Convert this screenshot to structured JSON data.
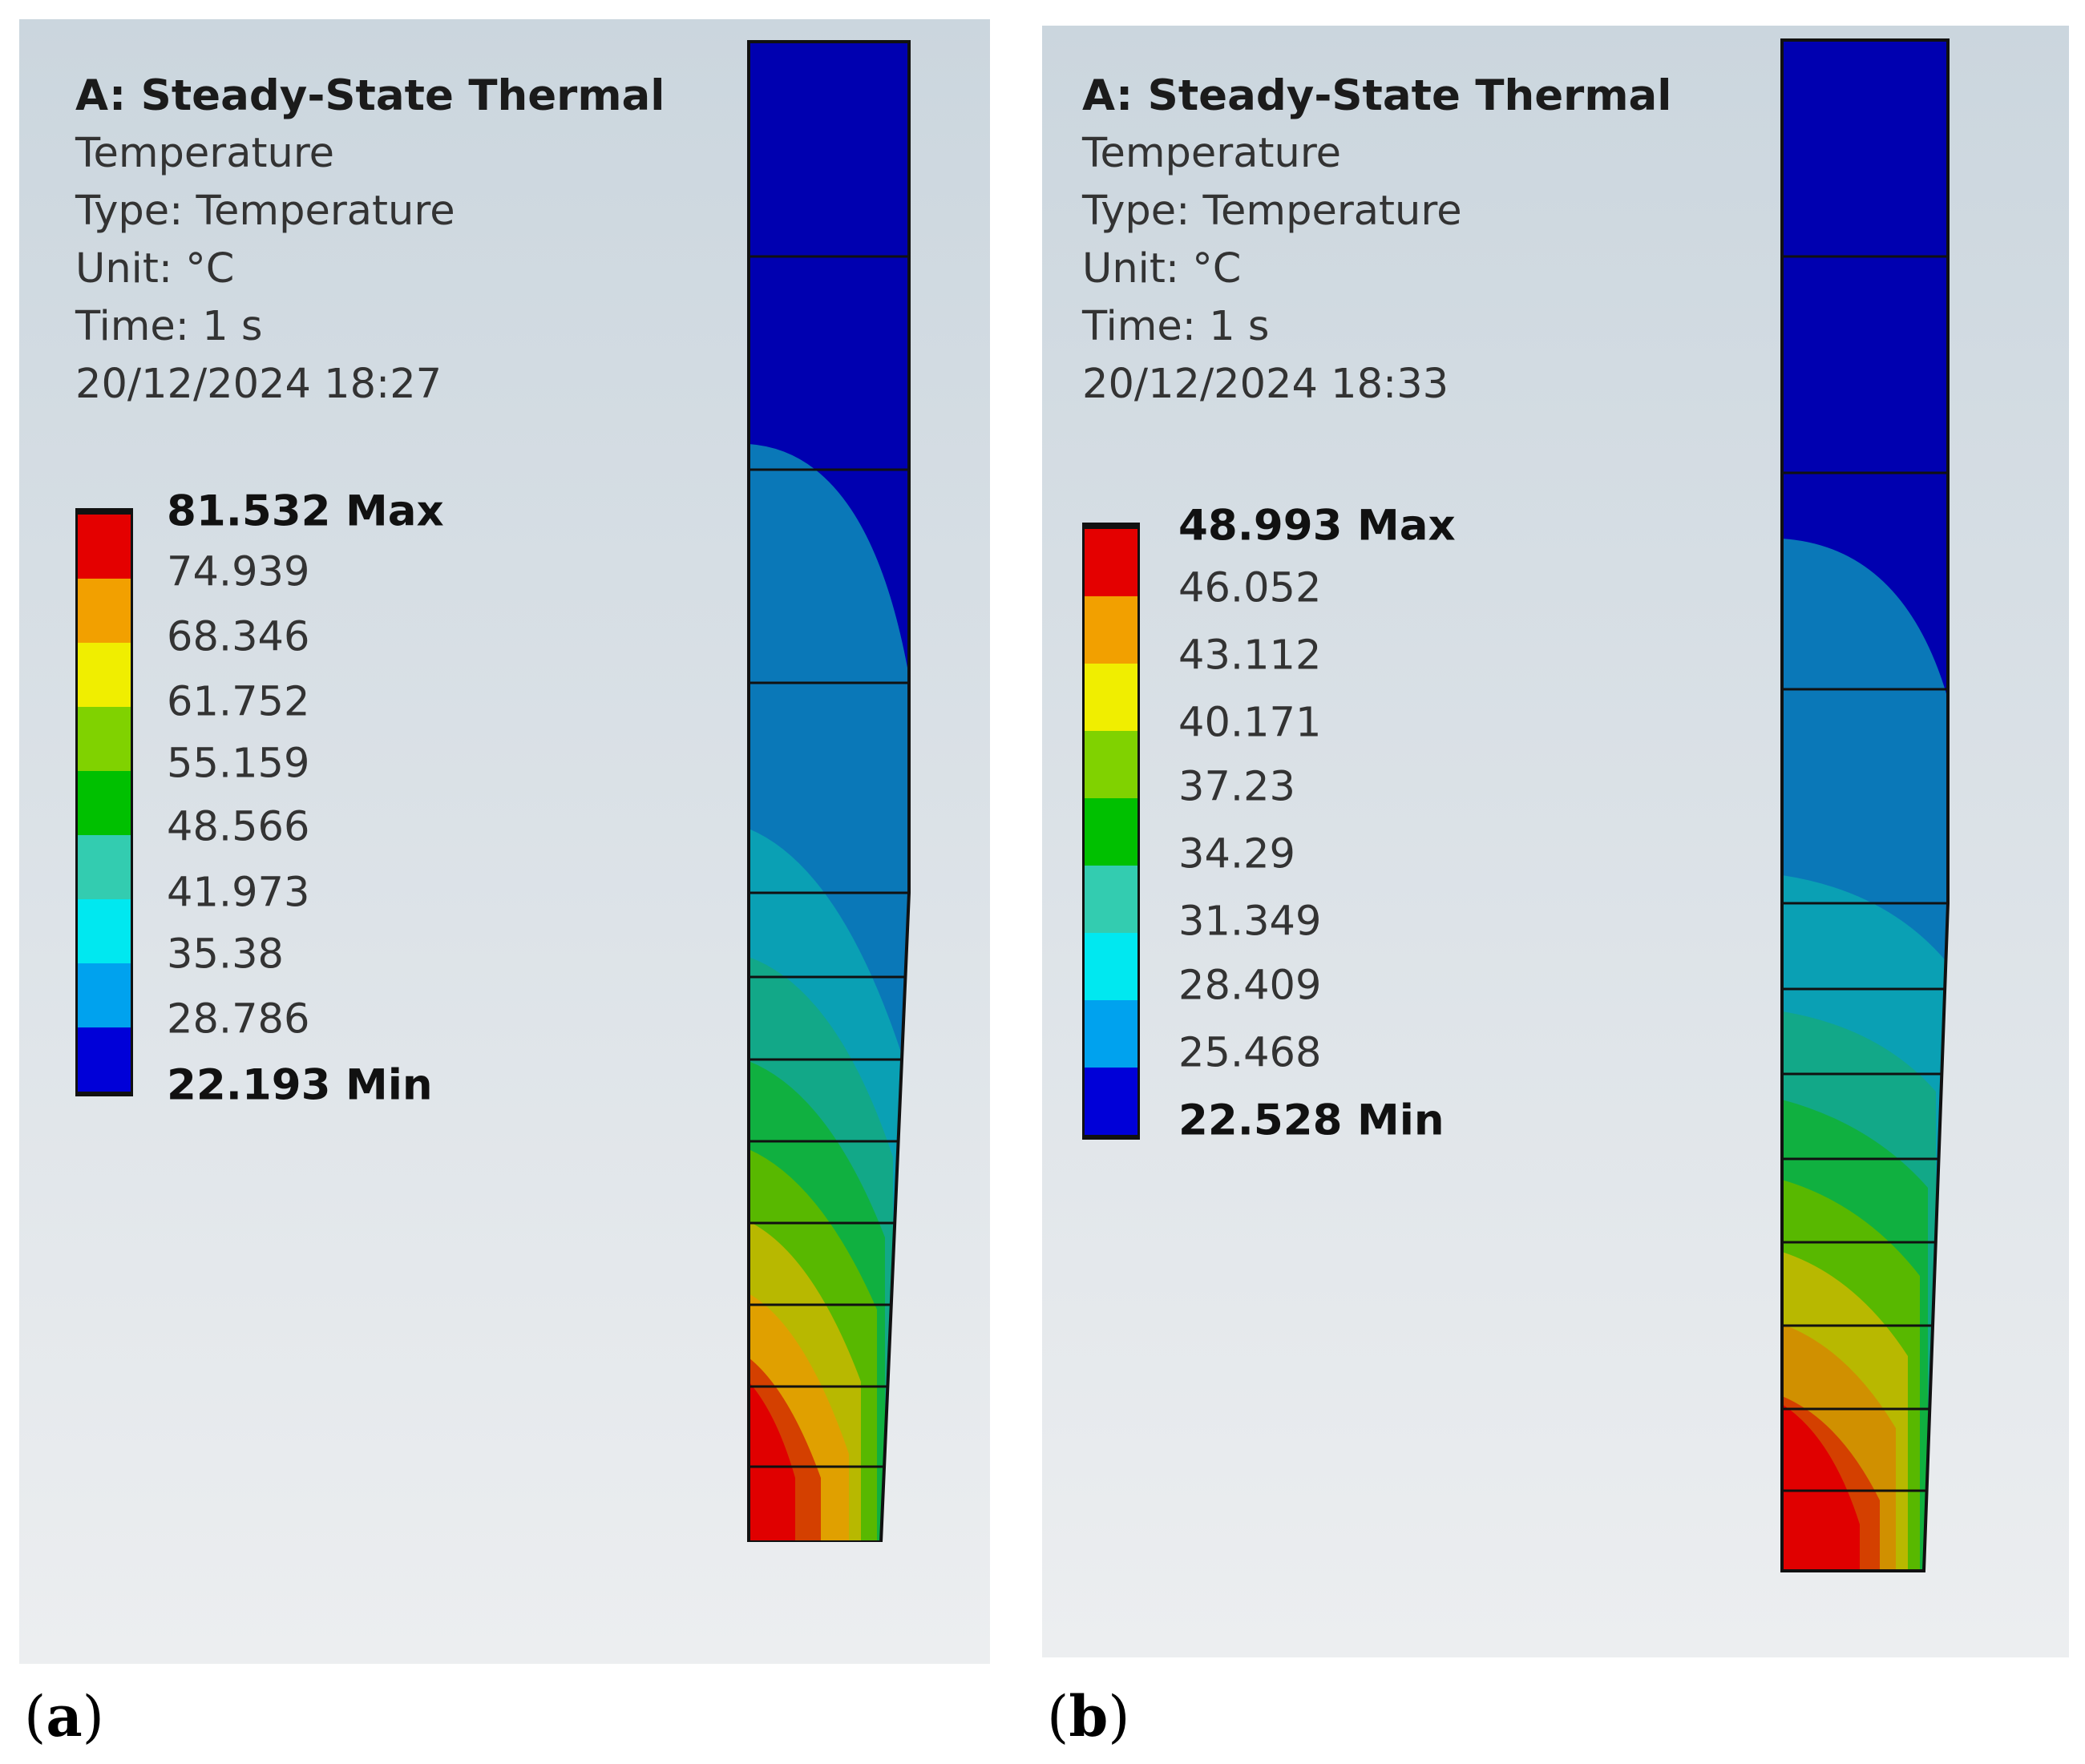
{
  "panels": [
    {
      "id": "a",
      "title": "A: Steady-State Thermal",
      "lines": [
        "Temperature",
        "Type: Temperature",
        "Unit: °C",
        "Time: 1 s",
        "20/12/2024 18:27"
      ],
      "legend": {
        "max_label": "81.532 Max",
        "min_label": "22.193 Min",
        "values": [
          "74.939",
          "68.346",
          "61.752",
          "55.159",
          "48.566",
          "41.973",
          "35.38",
          "28.786"
        ]
      },
      "caption": "a"
    },
    {
      "id": "b",
      "title": "A: Steady-State Thermal",
      "lines": [
        "Temperature",
        "Type: Temperature",
        "Unit: °C",
        "Time: 1 s",
        "20/12/2024 18:33"
      ],
      "legend": {
        "max_label": "48.993 Max",
        "min_label": "22.528 Min",
        "values": [
          "46.052",
          "43.112",
          "40.171",
          "37.23",
          "34.29",
          "31.349",
          "28.409",
          "25.468"
        ]
      },
      "caption": "b"
    }
  ],
  "legend_colors": [
    "#e40000",
    "#f2a000",
    "#f0ee00",
    "#80d200",
    "#00c000",
    "#33ccb0",
    "#00e8f0",
    "#00a2ee",
    "#0000d8"
  ]
}
